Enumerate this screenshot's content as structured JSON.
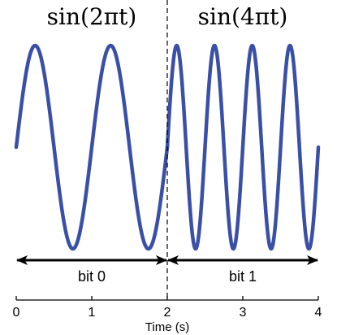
{
  "chart_data": {
    "type": "line",
    "xlabel": "Time (s)",
    "ylabel": "",
    "xlim": [
      0,
      4
    ],
    "ylim": [
      -1,
      1
    ],
    "x_ticks": [
      0,
      1,
      2,
      3,
      4
    ],
    "x_tick_labels": [
      "0",
      "1",
      "2",
      "3",
      "4"
    ],
    "grid": false,
    "series": [
      {
        "name": "sin(2πt)",
        "x_range": [
          0,
          2
        ],
        "frequency": 1,
        "color": "#3a4fa6"
      },
      {
        "name": "sin(4πt)",
        "x_range": [
          2,
          4
        ],
        "frequency": 2,
        "color": "#3a4fa6"
      }
    ],
    "divider_x": 2,
    "annotations": [
      {
        "text": "sin(2πt)",
        "x_center": 1
      },
      {
        "text": "sin(4πt)",
        "x_center": 3
      },
      {
        "text": "bit 0",
        "x_from": 0,
        "x_to": 2
      },
      {
        "text": "bit 1",
        "x_from": 2,
        "x_to": 4
      }
    ]
  }
}
